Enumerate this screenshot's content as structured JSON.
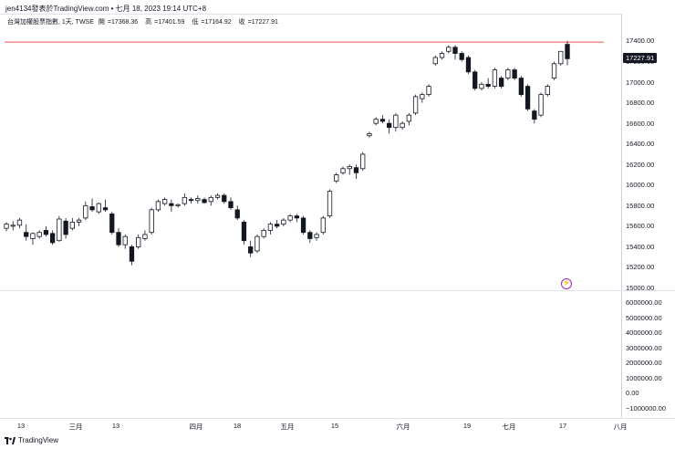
{
  "window": {
    "title": "jen4134發表於TradingView.com • 七月 18, 2023 19:14 UTC+8"
  },
  "legend": {
    "symbol": "台灣加權股票指數, 1天, TWSE",
    "open_label": "開",
    "open": "=17368.36",
    "high_label": "高",
    "high": "=17401.59",
    "low_label": "低",
    "low": "=17164.92",
    "close_label": "收",
    "close": "=17227.91"
  },
  "price_tag": "17227.91",
  "footer": {
    "brand": "TradingView"
  },
  "colors": {
    "up": "#ffffff",
    "down": "#131722",
    "highlight": "#26a69a",
    "line": "#ef5350"
  },
  "price_axis": [
    "17400.00",
    "17200.00",
    "17000.00",
    "16800.00",
    "16600.00",
    "16400.00",
    "16200.00",
    "16000.00",
    "15800.00",
    "15600.00",
    "15400.00",
    "15200.00",
    "15000.00"
  ],
  "volume_axis": [
    "6000000.00",
    "5000000.00",
    "4000000.00",
    "3000000.00",
    "2000000.00",
    "1000000.00",
    "0.00",
    "−1000000.00"
  ],
  "time_axis": [
    "13",
    "三月",
    "13",
    "四月",
    "18",
    "五月",
    "15",
    "六月",
    "19",
    "七月",
    "17",
    "八月"
  ],
  "chart_data": {
    "type": "candlestick",
    "ylim": [
      15000,
      17500
    ],
    "horizontal_line": 17390,
    "candles": [
      {
        "o": 15580,
        "h": 15640,
        "l": 15550,
        "c": 15620
      },
      {
        "o": 15600,
        "h": 15650,
        "l": 15560,
        "c": 15610
      },
      {
        "o": 15610,
        "h": 15680,
        "l": 15580,
        "c": 15660
      },
      {
        "o": 15540,
        "h": 15620,
        "l": 15460,
        "c": 15500
      },
      {
        "o": 15480,
        "h": 15540,
        "l": 15420,
        "c": 15530
      },
      {
        "o": 15500,
        "h": 15560,
        "l": 15480,
        "c": 15540
      },
      {
        "o": 15560,
        "h": 15600,
        "l": 15500,
        "c": 15520
      },
      {
        "o": 15530,
        "h": 15560,
        "l": 15420,
        "c": 15440
      },
      {
        "o": 15460,
        "h": 15700,
        "l": 15450,
        "c": 15670
      },
      {
        "o": 15650,
        "h": 15680,
        "l": 15480,
        "c": 15520
      },
      {
        "o": 15580,
        "h": 15680,
        "l": 15560,
        "c": 15640
      },
      {
        "o": 15640,
        "h": 15680,
        "l": 15600,
        "c": 15660
      },
      {
        "o": 15680,
        "h": 15840,
        "l": 15660,
        "c": 15800
      },
      {
        "o": 15790,
        "h": 15870,
        "l": 15740,
        "c": 15760
      },
      {
        "o": 15740,
        "h": 15830,
        "l": 15720,
        "c": 15820
      },
      {
        "o": 15780,
        "h": 15860,
        "l": 15740,
        "c": 15760
      },
      {
        "o": 15720,
        "h": 15740,
        "l": 15520,
        "c": 15540
      },
      {
        "o": 15540,
        "h": 15580,
        "l": 15400,
        "c": 15420
      },
      {
        "o": 15420,
        "h": 15520,
        "l": 15380,
        "c": 15500
      },
      {
        "o": 15400,
        "h": 15420,
        "l": 15220,
        "c": 15260
      },
      {
        "o": 15400,
        "h": 15520,
        "l": 15380,
        "c": 15490
      },
      {
        "o": 15480,
        "h": 15560,
        "l": 15460,
        "c": 15520
      },
      {
        "o": 15540,
        "h": 15780,
        "l": 15520,
        "c": 15760
      },
      {
        "o": 15760,
        "h": 15860,
        "l": 15740,
        "c": 15840
      },
      {
        "o": 15820,
        "h": 15880,
        "l": 15800,
        "c": 15860
      },
      {
        "o": 15820,
        "h": 15860,
        "l": 15740,
        "c": 15800
      },
      {
        "o": 15800,
        "h": 15820,
        "l": 15780,
        "c": 15810
      },
      {
        "o": 15820,
        "h": 15920,
        "l": 15800,
        "c": 15880
      },
      {
        "o": 15860,
        "h": 15880,
        "l": 15820,
        "c": 15850
      },
      {
        "o": 15850,
        "h": 15900,
        "l": 15820,
        "c": 15870
      },
      {
        "o": 15860,
        "h": 15880,
        "l": 15820,
        "c": 15830
      },
      {
        "o": 15840,
        "h": 15900,
        "l": 15800,
        "c": 15880
      },
      {
        "o": 15880,
        "h": 15920,
        "l": 15860,
        "c": 15900
      },
      {
        "o": 15900,
        "h": 15920,
        "l": 15820,
        "c": 15840
      },
      {
        "o": 15840,
        "h": 15880,
        "l": 15760,
        "c": 15780
      },
      {
        "o": 15760,
        "h": 15800,
        "l": 15660,
        "c": 15680
      },
      {
        "o": 15640,
        "h": 15660,
        "l": 15420,
        "c": 15460
      },
      {
        "o": 15400,
        "h": 15460,
        "l": 15300,
        "c": 15340
      },
      {
        "o": 15360,
        "h": 15520,
        "l": 15340,
        "c": 15500
      },
      {
        "o": 15500,
        "h": 15580,
        "l": 15480,
        "c": 15560
      },
      {
        "o": 15560,
        "h": 15640,
        "l": 15520,
        "c": 15620
      },
      {
        "o": 15620,
        "h": 15660,
        "l": 15580,
        "c": 15600
      },
      {
        "o": 15620,
        "h": 15680,
        "l": 15600,
        "c": 15660
      },
      {
        "o": 15660,
        "h": 15720,
        "l": 15640,
        "c": 15700
      },
      {
        "o": 15700,
        "h": 15720,
        "l": 15640,
        "c": 15680
      },
      {
        "o": 15680,
        "h": 15700,
        "l": 15520,
        "c": 15540
      },
      {
        "o": 15540,
        "h": 15560,
        "l": 15440,
        "c": 15480
      },
      {
        "o": 15490,
        "h": 15540,
        "l": 15460,
        "c": 15520
      },
      {
        "o": 15540,
        "h": 15700,
        "l": 15520,
        "c": 15680
      },
      {
        "o": 15700,
        "h": 15960,
        "l": 15680,
        "c": 15940
      },
      {
        "o": 16040,
        "h": 16120,
        "l": 16020,
        "c": 16100
      },
      {
        "o": 16120,
        "h": 16180,
        "l": 16100,
        "c": 16160
      },
      {
        "o": 16160,
        "h": 16200,
        "l": 16100,
        "c": 16180
      },
      {
        "o": 16170,
        "h": 16200,
        "l": 16060,
        "c": 16120
      },
      {
        "o": 16160,
        "h": 16320,
        "l": 16140,
        "c": 16300
      },
      {
        "o": 16480,
        "h": 16520,
        "l": 16460,
        "c": 16500
      },
      {
        "o": 16600,
        "h": 16660,
        "l": 16580,
        "c": 16640
      },
      {
        "o": 16640,
        "h": 16680,
        "l": 16600,
        "c": 16620
      },
      {
        "o": 16600,
        "h": 16640,
        "l": 16500,
        "c": 16560
      },
      {
        "o": 16560,
        "h": 16700,
        "l": 16520,
        "c": 16680
      },
      {
        "o": 16560,
        "h": 16620,
        "l": 16540,
        "c": 16600
      },
      {
        "o": 16620,
        "h": 16700,
        "l": 16580,
        "c": 16680
      },
      {
        "o": 16700,
        "h": 16880,
        "l": 16680,
        "c": 16860
      },
      {
        "o": 16840,
        "h": 16900,
        "l": 16800,
        "c": 16880
      },
      {
        "o": 16880,
        "h": 16980,
        "l": 16860,
        "c": 16960
      },
      {
        "o": 17180,
        "h": 17260,
        "l": 17160,
        "c": 17240
      },
      {
        "o": 17240,
        "h": 17300,
        "l": 17220,
        "c": 17280
      },
      {
        "o": 17300,
        "h": 17360,
        "l": 17280,
        "c": 17340
      },
      {
        "o": 17340,
        "h": 17360,
        "l": 17220,
        "c": 17280
      },
      {
        "o": 17280,
        "h": 17300,
        "l": 17200,
        "c": 17220
      },
      {
        "o": 17240,
        "h": 17260,
        "l": 17080,
        "c": 17100
      },
      {
        "o": 17100,
        "h": 17120,
        "l": 16920,
        "c": 16940
      },
      {
        "o": 16940,
        "h": 17000,
        "l": 16920,
        "c": 16980
      },
      {
        "o": 16980,
        "h": 17040,
        "l": 16940,
        "c": 16960
      },
      {
        "o": 16960,
        "h": 17140,
        "l": 16940,
        "c": 17120
      },
      {
        "o": 17040,
        "h": 17060,
        "l": 16940,
        "c": 16960
      },
      {
        "o": 17040,
        "h": 17140,
        "l": 17020,
        "c": 17120
      },
      {
        "o": 17120,
        "h": 17140,
        "l": 17020,
        "c": 17040
      },
      {
        "o": 17040,
        "h": 17060,
        "l": 16860,
        "c": 16880
      },
      {
        "o": 16960,
        "h": 16980,
        "l": 16720,
        "c": 16740
      },
      {
        "o": 16720,
        "h": 16740,
        "l": 16600,
        "c": 16640
      },
      {
        "o": 16680,
        "h": 16900,
        "l": 16660,
        "c": 16880
      },
      {
        "o": 16880,
        "h": 16980,
        "l": 16860,
        "c": 16960
      },
      {
        "o": 17040,
        "h": 17200,
        "l": 17020,
        "c": 17180
      },
      {
        "o": 17180,
        "h": 17300,
        "l": 17160,
        "c": 17300
      },
      {
        "o": 17368,
        "h": 17402,
        "l": 17165,
        "c": 17228
      }
    ]
  }
}
